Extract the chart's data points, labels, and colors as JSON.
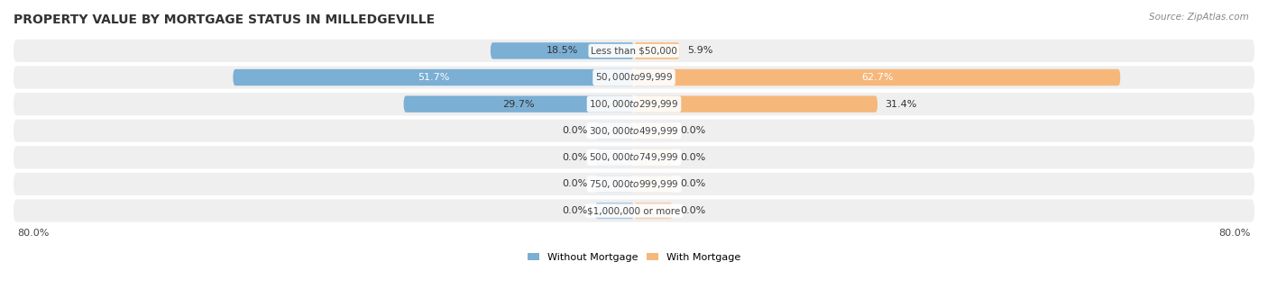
{
  "title": "PROPERTY VALUE BY MORTGAGE STATUS IN MILLEDGEVILLE",
  "source": "Source: ZipAtlas.com",
  "categories": [
    "Less than $50,000",
    "$50,000 to $99,999",
    "$100,000 to $299,999",
    "$300,000 to $499,999",
    "$500,000 to $749,999",
    "$750,000 to $999,999",
    "$1,000,000 or more"
  ],
  "without_mortgage": [
    18.5,
    51.7,
    29.7,
    0.0,
    0.0,
    0.0,
    0.0
  ],
  "with_mortgage": [
    5.9,
    62.7,
    31.4,
    0.0,
    0.0,
    0.0,
    0.0
  ],
  "color_without": "#7BAFD4",
  "color_with": "#F5B87A",
  "row_bg_color": "#EFEFEF",
  "stub_size": 5.0,
  "max_val": 80.0,
  "axis_left_label": "80.0%",
  "axis_right_label": "80.0%",
  "title_fontsize": 10,
  "source_fontsize": 7.5,
  "label_fontsize": 7.5,
  "bar_label_fontsize": 8,
  "legend_fontsize": 8
}
